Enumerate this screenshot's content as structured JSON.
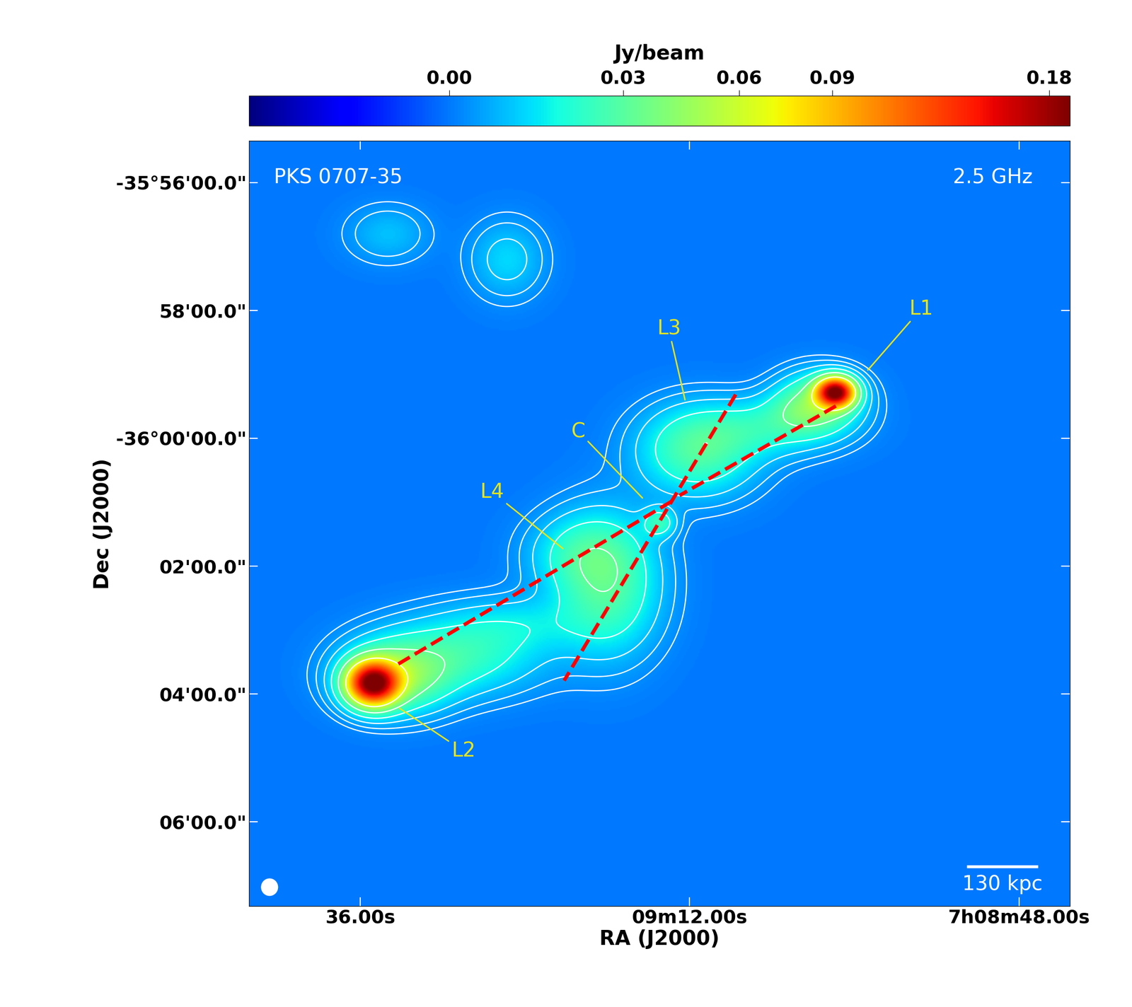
{
  "chart_data": {
    "type": "image",
    "title": "PKS 0707-35",
    "subtitle": "2.5 GHz",
    "x_label": "RA (J2000)",
    "y_label": "Dec (J2000)",
    "xlim": [
      44.1,
      -15.7
    ],
    "ylim": [
      -7.32,
      4.65
    ],
    "xticks": [
      {
        "value": 36,
        "label": "36.00s"
      },
      {
        "value": 12,
        "label": "09m12.00s"
      },
      {
        "value": -12,
        "label": "7h08m48.00s"
      }
    ],
    "yticks": [
      {
        "value": 4,
        "label": "-35°56'00.0\""
      },
      {
        "value": 2,
        "label": "58'00.0\""
      },
      {
        "value": 0,
        "label": "-36°00'00.0\""
      },
      {
        "value": -2,
        "label": "02'00.0\""
      },
      {
        "value": -4,
        "label": "04'00.0\""
      },
      {
        "value": -6,
        "label": "06'00.0\""
      }
    ],
    "colorbar": {
      "label": "Jy/beam",
      "range": [
        -0.012,
        0.19
      ],
      "ticks": [
        {
          "value": 0,
          "label": "0.00"
        },
        0.03,
        0.06,
        0.09,
        0.18
      ]
    },
    "components": [
      {
        "x": 1.34,
        "y": 0.72,
        "peak": 0.18,
        "sx": 0.9,
        "sy": 0.15
      },
      {
        "x": 2.5,
        "y": 0.6,
        "peak": 0.03,
        "sx": 2.0,
        "sy": 0.3
      },
      {
        "x": 35.1,
        "y": -3.84,
        "peak": 0.18,
        "sx": 1.2,
        "sy": 0.22
      },
      {
        "x": 33.5,
        "y": -3.75,
        "peak": 0.04,
        "sx": 2.5,
        "sy": 0.35
      },
      {
        "x": 29.0,
        "y": -3.4,
        "peak": 0.022,
        "sx": 4.0,
        "sy": 0.4
      },
      {
        "x": 24.5,
        "y": -2.9,
        "peak": 0.01,
        "sx": 3.5,
        "sy": 0.3
      },
      {
        "x": 18.0,
        "y": -2.3,
        "peak": 0.028,
        "sx": 2.5,
        "sy": 0.7
      },
      {
        "x": 20.0,
        "y": -1.8,
        "peak": 0.015,
        "sx": 2.5,
        "sy": 0.4
      },
      {
        "x": 14.2,
        "y": -1.32,
        "peak": 0.02,
        "sx": 0.8,
        "sy": 0.15
      },
      {
        "x": 11.4,
        "y": -0.2,
        "peak": 0.028,
        "sx": 2.8,
        "sy": 0.45
      },
      {
        "x": 6.5,
        "y": 0.15,
        "peak": 0.016,
        "sx": 3.5,
        "sy": 0.3
      },
      {
        "x": 3.5,
        "y": 0.4,
        "peak": 0.015,
        "sx": 2.0,
        "sy": 0.25
      },
      {
        "x": 34.0,
        "y": 3.2,
        "peak": 0.008,
        "sx": 2.0,
        "sy": 0.3
      },
      {
        "x": 25.3,
        "y": 2.8,
        "peak": 0.011,
        "sx": 1.8,
        "sy": 0.4
      }
    ],
    "contour_levels": [
      0.002,
      0.004,
      0.008,
      0.016,
      0.032,
      0.064
    ],
    "fit_lines": [
      [
        [
          1.34,
          0.505
        ],
        [
          12.73,
          -0.895
        ]
      ],
      [
        [
          8.64,
          0.684
        ],
        [
          21.14,
          -3.79
        ]
      ],
      [
        [
          33.22,
          -3.53
        ],
        [
          13.0,
          -0.947
        ]
      ]
    ],
    "annotations": [
      {
        "text": "L1",
        "xy": [
          -0.92,
          1.05
        ],
        "xytext": [
          -4.86,
          2.02
        ]
      },
      {
        "text": "L3",
        "xy": [
          12.31,
          0.58
        ],
        "xytext": [
          13.52,
          1.71
        ]
      },
      {
        "text": "C",
        "xy": [
          15.36,
          -0.95
        ],
        "xytext": [
          20.09,
          0.105
        ]
      },
      {
        "text": "L4",
        "xy": [
          21.14,
          -1.74
        ],
        "xytext": [
          26.39,
          -0.84
        ]
      },
      {
        "text": "L2",
        "xy": [
          33.22,
          -4.21
        ],
        "xytext": [
          28.49,
          -4.89
        ]
      }
    ],
    "scale_bar": {
      "label": "130 kpc",
      "x": [
        -8.3,
        -13.3
      ],
      "y": -6.7
    }
  }
}
